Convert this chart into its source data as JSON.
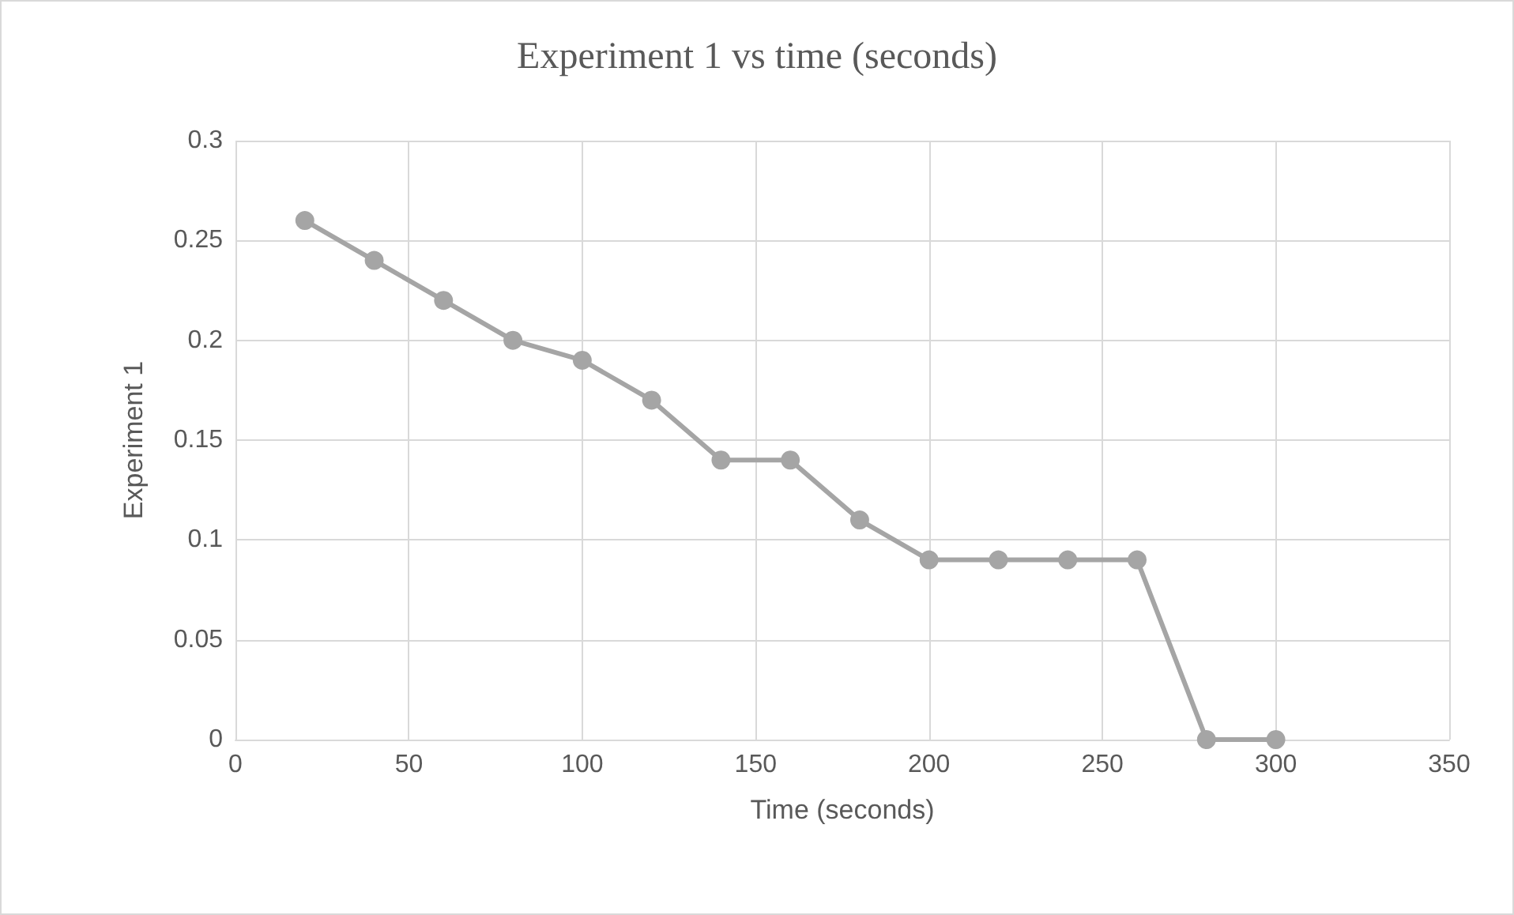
{
  "chart_data": {
    "type": "line",
    "title": "Experiment 1 vs time (seconds)",
    "xlabel": "Time (seconds)",
    "ylabel": "Experiment 1",
    "x": [
      20,
      40,
      60,
      80,
      100,
      120,
      140,
      160,
      180,
      200,
      220,
      240,
      260,
      280,
      300
    ],
    "series": [
      {
        "color": "#a5a5a5",
        "values": [
          0.26,
          0.24,
          0.22,
          0.2,
          0.19,
          0.17,
          0.14,
          0.14,
          0.11,
          0.09,
          0.09,
          0.09,
          0.09,
          0,
          0
        ]
      }
    ],
    "xlim": [
      0,
      350
    ],
    "xticks": [
      0,
      50,
      100,
      150,
      200,
      250,
      300,
      350
    ],
    "ylim": [
      0,
      0.3
    ],
    "yticks": [
      0,
      0.05,
      0.1,
      0.15,
      0.2,
      0.25,
      0.3
    ],
    "grid": true,
    "marker": "circle",
    "line_style": "solid"
  }
}
